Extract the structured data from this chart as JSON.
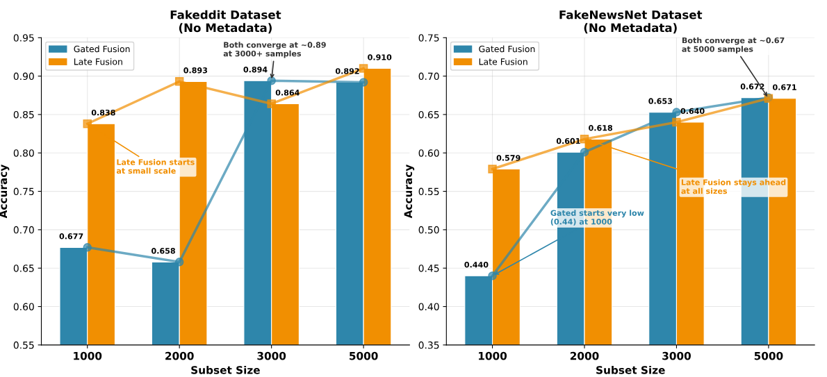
{
  "chart_data": [
    {
      "type": "bar",
      "title": "Fakeddit Dataset\n(No Metadata)",
      "xlabel": "Subset Size",
      "ylabel": "Accuracy",
      "categories": [
        "1000",
        "2000",
        "3000",
        "5000"
      ],
      "series": [
        {
          "name": "Gated Fusion",
          "color": "#2e86ab",
          "values": [
            0.677,
            0.658,
            0.894,
            0.892
          ]
        },
        {
          "name": "Late Fusion",
          "color": "#f18f01",
          "values": [
            0.838,
            0.893,
            0.864,
            0.91
          ]
        },
        {
          "type": "line",
          "color": "#2e86ab",
          "marker": "circle",
          "values": [
            0.677,
            0.658,
            0.894,
            0.892
          ],
          "value_labels": [
            "0.677",
            "0.658",
            "0.894",
            "0.892"
          ]
        },
        {
          "type": "line",
          "color": "#f18f01",
          "marker": "square",
          "values": [
            0.838,
            0.893,
            0.864,
            0.91
          ],
          "value_labels": [
            "0.838",
            "0.893",
            "0.864",
            "0.910"
          ]
        }
      ],
      "ylim": [
        0.55,
        0.95
      ],
      "yticks": [
        {
          "value": 0.55,
          "label": "0.55"
        },
        {
          "value": 0.6,
          "label": "0.60"
        },
        {
          "value": 0.65,
          "label": "0.65"
        },
        {
          "value": 0.7,
          "label": "0.70"
        },
        {
          "value": 0.75,
          "label": "0.75"
        },
        {
          "value": 0.8,
          "label": "0.80"
        },
        {
          "value": 0.85,
          "label": "0.85"
        },
        {
          "value": 0.9,
          "label": "0.90"
        },
        {
          "value": 0.95,
          "label": "0.95"
        }
      ],
      "grid": true,
      "legend": "top left",
      "annotations": [
        {
          "text": "Late Fusion starts\nat small scale",
          "x": "1000",
          "y": 0.838
        },
        {
          "text": "Both converge at ~0.89\nat 3000+ samples",
          "x": "3000",
          "y": 0.894
        }
      ]
    },
    {
      "type": "bar",
      "title": "FakeNewsNet Dataset\n(No Metadata)",
      "xlabel": "Subset Size",
      "ylabel": "Accuracy",
      "categories": [
        "1000",
        "2000",
        "3000",
        "5000"
      ],
      "series": [
        {
          "name": "Gated Fusion",
          "color": "#2e86ab",
          "values": [
            0.44,
            0.601,
            0.653,
            0.672
          ]
        },
        {
          "name": "Late Fusion",
          "color": "#f18f01",
          "values": [
            0.579,
            0.618,
            0.64,
            0.671
          ]
        },
        {
          "type": "line",
          "color": "#2e86ab",
          "marker": "circle",
          "values": [
            0.44,
            0.601,
            0.653,
            0.672
          ],
          "value_labels": [
            "0.440",
            "0.601",
            "0.653",
            "0.672"
          ]
        },
        {
          "type": "line",
          "color": "#f18f01",
          "marker": "square",
          "values": [
            0.579,
            0.618,
            0.64,
            0.671
          ],
          "value_labels": [
            "0.579",
            "0.618",
            "0.640",
            "0.671"
          ]
        }
      ],
      "ylim": [
        0.35,
        0.75
      ],
      "yticks": [
        {
          "value": 0.35,
          "label": "0.35"
        },
        {
          "value": 0.4,
          "label": "0.40"
        },
        {
          "value": 0.45,
          "label": "0.45"
        },
        {
          "value": 0.5,
          "label": "0.50"
        },
        {
          "value": 0.55,
          "label": "0.55"
        },
        {
          "value": 0.6,
          "label": "0.60"
        },
        {
          "value": 0.65,
          "label": "0.65"
        },
        {
          "value": 0.7,
          "label": "0.70"
        },
        {
          "value": 0.75,
          "label": "0.75"
        }
      ],
      "grid": true,
      "legend": "top left",
      "annotations": [
        {
          "text": "Gated starts very low\n(0.44) at 1000",
          "x": "1000",
          "y": 0.44
        },
        {
          "text": "Late Fusion stays ahead\nat all sizes",
          "x": "2000",
          "y": 0.618
        },
        {
          "text": "Both converge at ~0.67\nat 5000 samples",
          "x": "5000",
          "y": 0.671
        }
      ]
    }
  ]
}
